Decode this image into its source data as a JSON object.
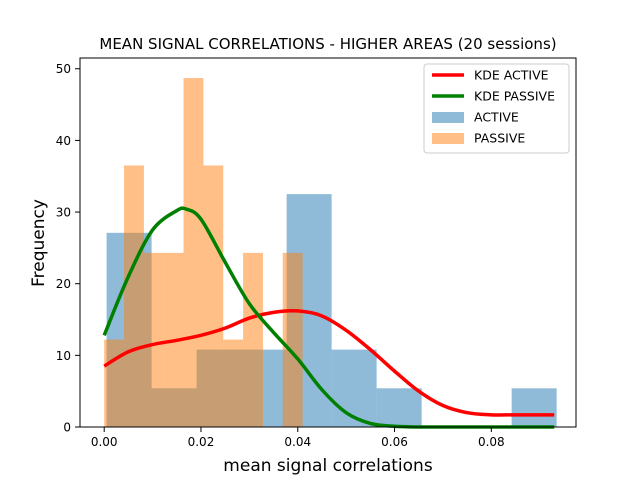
{
  "chart_data": {
    "type": "histogram",
    "title": "MEAN SIGNAL CORRELATIONS - HIGHER AREAS (20 sessions)",
    "xlabel": "mean signal correlations",
    "ylabel": "Frequency",
    "xlim": [
      -0.005,
      0.0975
    ],
    "ylim": [
      0,
      51.5
    ],
    "x_ticks": [
      0.0,
      0.02,
      0.04,
      0.06,
      0.08
    ],
    "x_tick_labels": [
      "0.00",
      "0.02",
      "0.04",
      "0.06",
      "0.08"
    ],
    "y_ticks": [
      0,
      10,
      20,
      30,
      40,
      50
    ],
    "y_tick_labels": [
      "0",
      "10",
      "20",
      "30",
      "40",
      "50"
    ],
    "grid": false,
    "legend_position": "top-right",
    "legend": [
      {
        "label": "KDE ACTIVE",
        "kind": "line",
        "color": "#ff0000"
      },
      {
        "label": "KDE PASSIVE",
        "kind": "line",
        "color": "#008000"
      },
      {
        "label": "ACTIVE",
        "kind": "patch",
        "color": "#1f77b4"
      },
      {
        "label": "PASSIVE",
        "kind": "patch",
        "color": "#ff7f0e"
      }
    ],
    "histograms": [
      {
        "name": "ACTIVE",
        "color": "#1f77b4",
        "opacity": 0.5,
        "bins": [
          {
            "x0": 0.0005,
            "x1": 0.0098,
            "height": 27.1
          },
          {
            "x0": 0.0098,
            "x1": 0.0191,
            "height": 5.4
          },
          {
            "x0": 0.0191,
            "x1": 0.0284,
            "height": 10.8
          },
          {
            "x0": 0.0284,
            "x1": 0.0377,
            "height": 10.8
          },
          {
            "x0": 0.0377,
            "x1": 0.047,
            "height": 32.5
          },
          {
            "x0": 0.047,
            "x1": 0.0563,
            "height": 10.8
          },
          {
            "x0": 0.0563,
            "x1": 0.0656,
            "height": 5.4
          },
          {
            "x0": 0.0656,
            "x1": 0.0749,
            "height": 0
          },
          {
            "x0": 0.0749,
            "x1": 0.0842,
            "height": 0
          },
          {
            "x0": 0.0842,
            "x1": 0.0935,
            "height": 5.4
          }
        ]
      },
      {
        "name": "PASSIVE",
        "color": "#ff7f0e",
        "opacity": 0.5,
        "bins": [
          {
            "x0": 0.0,
            "x1": 0.0041,
            "height": 12.2
          },
          {
            "x0": 0.0041,
            "x1": 0.0082,
            "height": 36.5
          },
          {
            "x0": 0.0082,
            "x1": 0.0123,
            "height": 24.3
          },
          {
            "x0": 0.0123,
            "x1": 0.0164,
            "height": 24.3
          },
          {
            "x0": 0.0164,
            "x1": 0.0205,
            "height": 48.7
          },
          {
            "x0": 0.0205,
            "x1": 0.0246,
            "height": 36.5
          },
          {
            "x0": 0.0246,
            "x1": 0.0287,
            "height": 12.2
          },
          {
            "x0": 0.0287,
            "x1": 0.0328,
            "height": 24.3
          },
          {
            "x0": 0.0328,
            "x1": 0.0369,
            "height": 0
          },
          {
            "x0": 0.0369,
            "x1": 0.041,
            "height": 24.3
          }
        ]
      }
    ],
    "kde_series": [
      {
        "name": "KDE ACTIVE",
        "color": "#ff0000",
        "x": [
          0.0,
          0.005,
          0.01,
          0.015,
          0.02,
          0.025,
          0.03,
          0.035,
          0.04,
          0.045,
          0.05,
          0.055,
          0.06,
          0.065,
          0.07,
          0.075,
          0.08,
          0.085,
          0.093
        ],
        "y": [
          8.5,
          10.5,
          11.5,
          12.1,
          12.8,
          13.8,
          15.2,
          16.0,
          16.2,
          15.5,
          13.5,
          10.8,
          7.8,
          5.0,
          3.0,
          2.0,
          1.7,
          1.7,
          1.7
        ]
      },
      {
        "name": "KDE PASSIVE",
        "color": "#008000",
        "x": [
          0.0,
          0.005,
          0.01,
          0.015,
          0.017,
          0.02,
          0.025,
          0.03,
          0.035,
          0.04,
          0.045,
          0.05,
          0.055,
          0.06,
          0.065,
          0.07,
          0.08,
          0.093
        ],
        "y": [
          12.8,
          21.0,
          27.5,
          30.2,
          30.4,
          29.0,
          23.0,
          17.2,
          13.2,
          9.5,
          5.2,
          2.0,
          0.5,
          0.1,
          0.0,
          0.0,
          0.0,
          0.0
        ]
      }
    ]
  }
}
